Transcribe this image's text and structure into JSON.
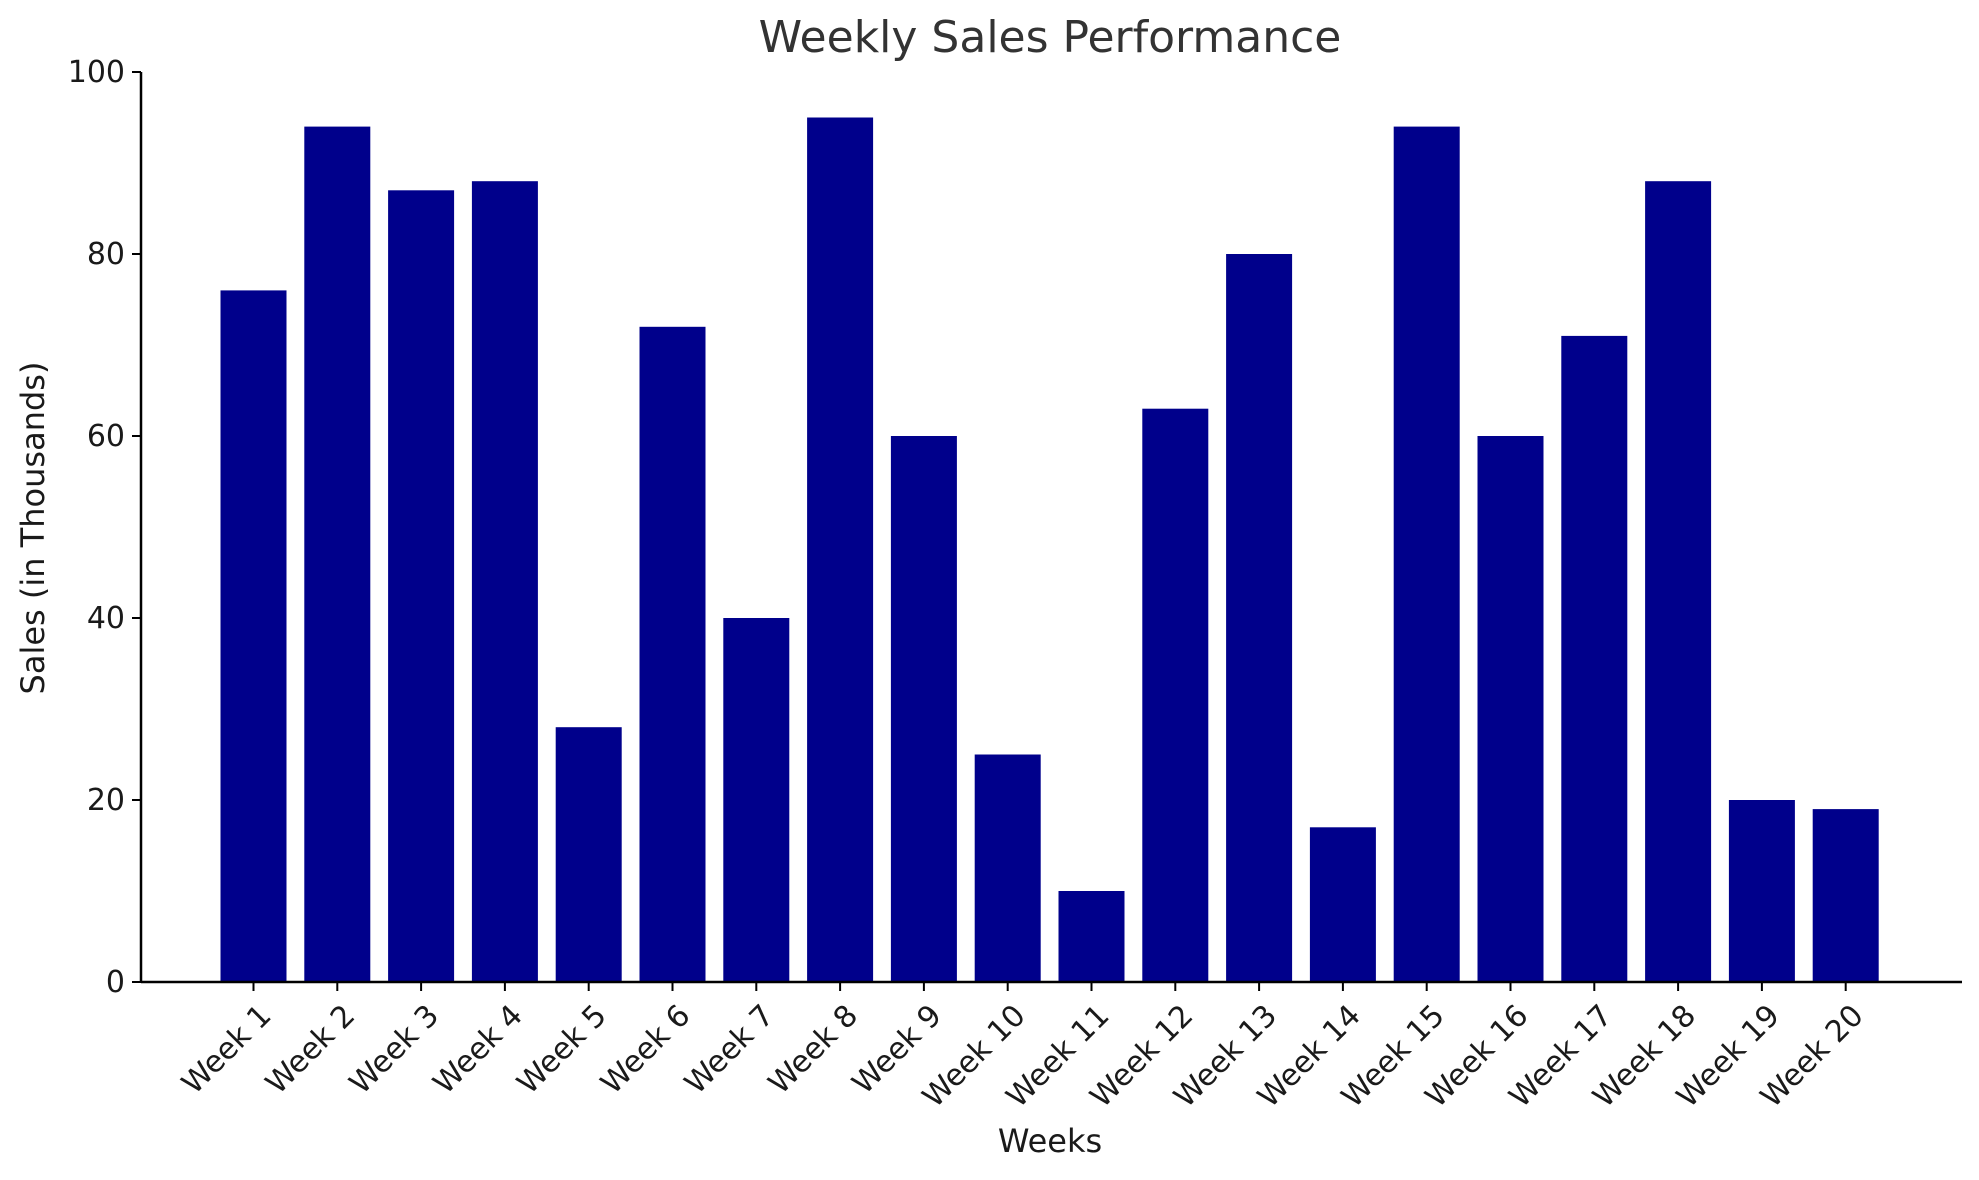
{
  "chart_data": {
    "type": "bar",
    "title": "Weekly Sales Performance",
    "xlabel": "Weeks",
    "ylabel": "Sales (in Thousands)",
    "ylim": [
      0,
      100
    ],
    "yticks": [
      0,
      20,
      40,
      60,
      80,
      100
    ],
    "categories": [
      "Week 1",
      "Week 2",
      "Week 3",
      "Week 4",
      "Week 5",
      "Week 6",
      "Week 7",
      "Week 8",
      "Week 9",
      "Week 10",
      "Week 11",
      "Week 12",
      "Week 13",
      "Week 14",
      "Week 15",
      "Week 16",
      "Week 17",
      "Week 18",
      "Week 19",
      "Week 20"
    ],
    "values": [
      76,
      94,
      87,
      88,
      28,
      72,
      40,
      95,
      60,
      25,
      10,
      63,
      80,
      17,
      94,
      60,
      71,
      88,
      20,
      19
    ],
    "bar_color": "#00008b",
    "grid": false,
    "legend": "none"
  }
}
